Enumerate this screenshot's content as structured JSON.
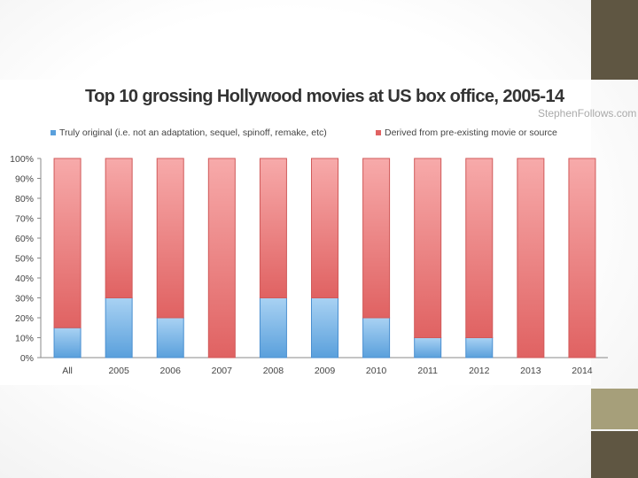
{
  "colors": {
    "accent_dark": "#5f5642",
    "accent_light": "#a69f7a",
    "original_series": "#5aa0dc",
    "derived_series": "#e06262"
  },
  "watermark": "StephenFollows.com",
  "chart_data": {
    "type": "bar",
    "stacked": true,
    "title": "Top 10 grossing Hollywood movies at US box office, 2005-14",
    "xlabel": "",
    "ylabel": "",
    "categories": [
      "All",
      "2005",
      "2006",
      "2007",
      "2008",
      "2009",
      "2010",
      "2011",
      "2012",
      "2013",
      "2014"
    ],
    "series": [
      {
        "name": "Truly original (i.e. not an adaptation, sequel, spinoff, remake, etc)",
        "color": "#5aa0dc",
        "values": [
          15,
          30,
          20,
          0,
          30,
          30,
          20,
          10,
          10,
          0,
          0
        ]
      },
      {
        "name": "Derived from pre-existing movie or source",
        "color": "#e06262",
        "values": [
          85,
          70,
          80,
          100,
          70,
          70,
          80,
          90,
          90,
          100,
          100
        ]
      }
    ],
    "ylim": [
      0,
      100
    ],
    "yticks": [
      "0%",
      "10%",
      "20%",
      "30%",
      "40%",
      "50%",
      "60%",
      "70%",
      "80%",
      "90%",
      "100%"
    ],
    "grid": false,
    "legend": "top"
  }
}
